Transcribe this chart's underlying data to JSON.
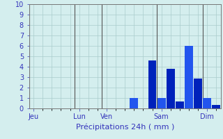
{
  "title": "Précipitations 24h ( mm )",
  "background_color": "#d4eeee",
  "bar_color_dark": "#0022bb",
  "bar_color_light": "#2255ee",
  "ylim": [
    0,
    10
  ],
  "yticks": [
    0,
    1,
    2,
    3,
    4,
    5,
    6,
    7,
    8,
    9,
    10
  ],
  "day_labels": [
    "Jeu",
    "Lun",
    "Ven",
    "Sam",
    "Dim"
  ],
  "total_slots": 21,
  "bar_values": [
    0,
    0,
    0,
    0,
    0,
    0,
    0,
    0,
    0,
    0,
    0,
    1.0,
    0,
    4.6,
    1.0,
    3.8,
    0.65,
    6.0,
    2.9,
    1.0,
    0.35
  ],
  "bar_colors": [
    "dark",
    "dark",
    "dark",
    "dark",
    "dark",
    "dark",
    "dark",
    "dark",
    "dark",
    "dark",
    "dark",
    "light",
    "dark",
    "dark",
    "light",
    "dark",
    "dark",
    "light",
    "dark",
    "light",
    "dark"
  ],
  "grid_color": "#aacccc",
  "tick_label_color": "#3333bb",
  "spine_color": "#777777",
  "vline_color": "#555555",
  "xlabel_color": "#3333bb",
  "xlabel_fontsize": 8,
  "ytick_fontsize": 7,
  "xtick_fontsize": 7
}
